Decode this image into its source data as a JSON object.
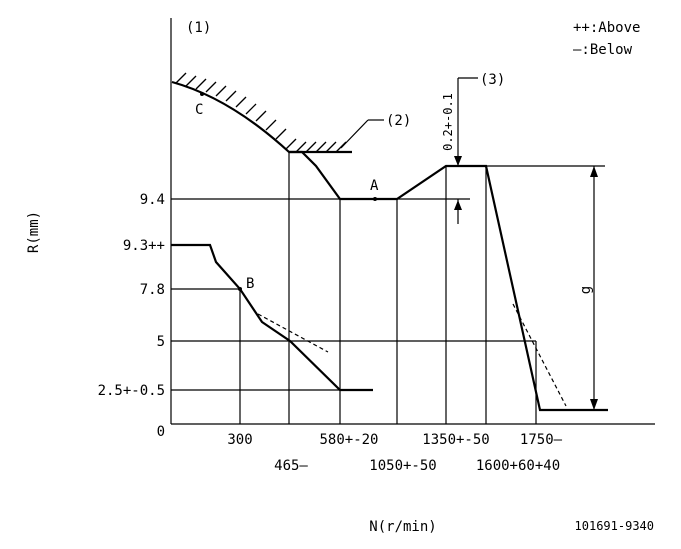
{
  "marker_1": "(1)",
  "marker_2": "(2)",
  "marker_3": "(3)",
  "legend_above": "++:Above",
  "legend_below": "—:Below",
  "y_axis_label": "R(mm)",
  "x_axis_label": "N(r/min)",
  "doc_number": "101691-9340",
  "point_a": "A",
  "point_b": "B",
  "point_c": "C",
  "y_ticks": {
    "y_9_4": "9.4",
    "y_9_3": "9.3++",
    "y_7_8": "7.8",
    "y_5": "5",
    "y_2_5": "2.5+-0.5",
    "y_0": "0"
  },
  "x_ticks": {
    "x_300": "300",
    "x_465": "465—",
    "x_580": "580+-20",
    "x_1050": "1050+-50",
    "x_1350": "1350+-50",
    "x_1600": "1600+60+40",
    "x_1750": "1750—"
  },
  "dim_0_2": "0.2+-0.1",
  "dim_g": "g"
}
